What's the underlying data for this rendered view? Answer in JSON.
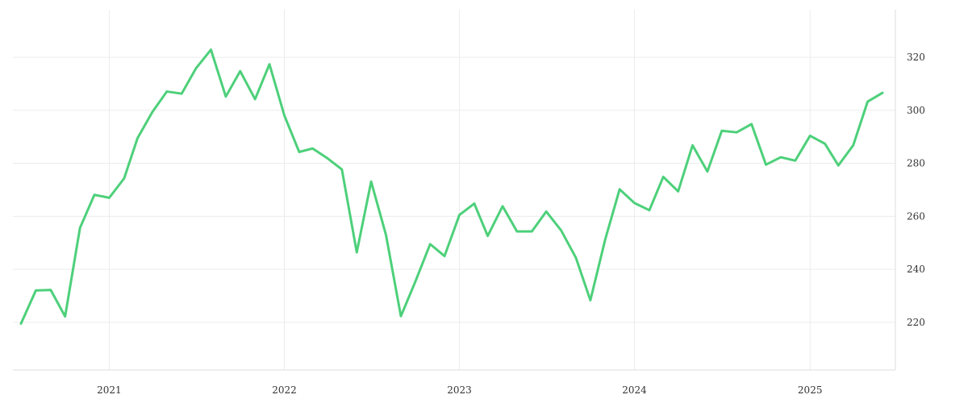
{
  "chart_data": {
    "type": "line",
    "title": "",
    "xlabel": "",
    "ylabel": "",
    "x_ticks": [
      "2021",
      "2022",
      "2023",
      "2024",
      "2025"
    ],
    "y_ticks": [
      220,
      240,
      260,
      280,
      300,
      320
    ],
    "xlim": [
      "2020-07-01",
      "2025-06-01"
    ],
    "ylim": [
      202,
      338
    ],
    "y_axis_side": "right",
    "grid": true,
    "legend": "none",
    "colors": {
      "line": "#4dd07a",
      "grid": "#ececec",
      "text": "#333333"
    },
    "series": [
      {
        "x": [
          "2020-07-01",
          "2020-08-01",
          "2020-09-01",
          "2020-10-01",
          "2020-11-01",
          "2020-12-01",
          "2021-01-01",
          "2021-02-01",
          "2021-03-01",
          "2021-04-01",
          "2021-05-01",
          "2021-06-01",
          "2021-07-01",
          "2021-08-01",
          "2021-09-01",
          "2021-10-01",
          "2021-11-01",
          "2021-12-01",
          "2022-01-01",
          "2022-02-01",
          "2022-03-01",
          "2022-04-01",
          "2022-05-01",
          "2022-06-01",
          "2022-07-01",
          "2022-08-01",
          "2022-09-01",
          "2022-10-01",
          "2022-11-01",
          "2022-12-01",
          "2023-01-01",
          "2023-02-01",
          "2023-03-01",
          "2023-04-01",
          "2023-05-01",
          "2023-06-01",
          "2023-07-01",
          "2023-08-01",
          "2023-09-01",
          "2023-10-01",
          "2023-11-01",
          "2023-12-01",
          "2024-01-01",
          "2024-02-01",
          "2024-03-01",
          "2024-04-01",
          "2024-05-01",
          "2024-06-01",
          "2024-07-01",
          "2024-08-01",
          "2024-09-01",
          "2024-10-01",
          "2024-11-01",
          "2024-12-01",
          "2025-01-01",
          "2025-02-01",
          "2025-03-01",
          "2025-04-01",
          "2025-05-01",
          "2025-06-01"
        ],
        "values": [
          219.5,
          232.0,
          232.2,
          222.2,
          255.6,
          268.1,
          267.0,
          274.3,
          289.5,
          299.4,
          307.1,
          306.3,
          315.9,
          322.9,
          305.2,
          314.8,
          304.2,
          317.4,
          298.1,
          284.3,
          285.6,
          281.9,
          277.7,
          246.4,
          273.1,
          252.9,
          222.3,
          235.3,
          249.5,
          245.0,
          260.5,
          264.8,
          252.6,
          263.8,
          254.3,
          254.3,
          261.8,
          254.7,
          244.3,
          228.3,
          251.3,
          270.2,
          265.0,
          262.3,
          274.9,
          269.4,
          286.8,
          276.9,
          292.3,
          291.7,
          294.8,
          279.5,
          282.3,
          281.0,
          290.4,
          287.4,
          279.2,
          286.8,
          303.3,
          306.6
        ]
      }
    ]
  }
}
